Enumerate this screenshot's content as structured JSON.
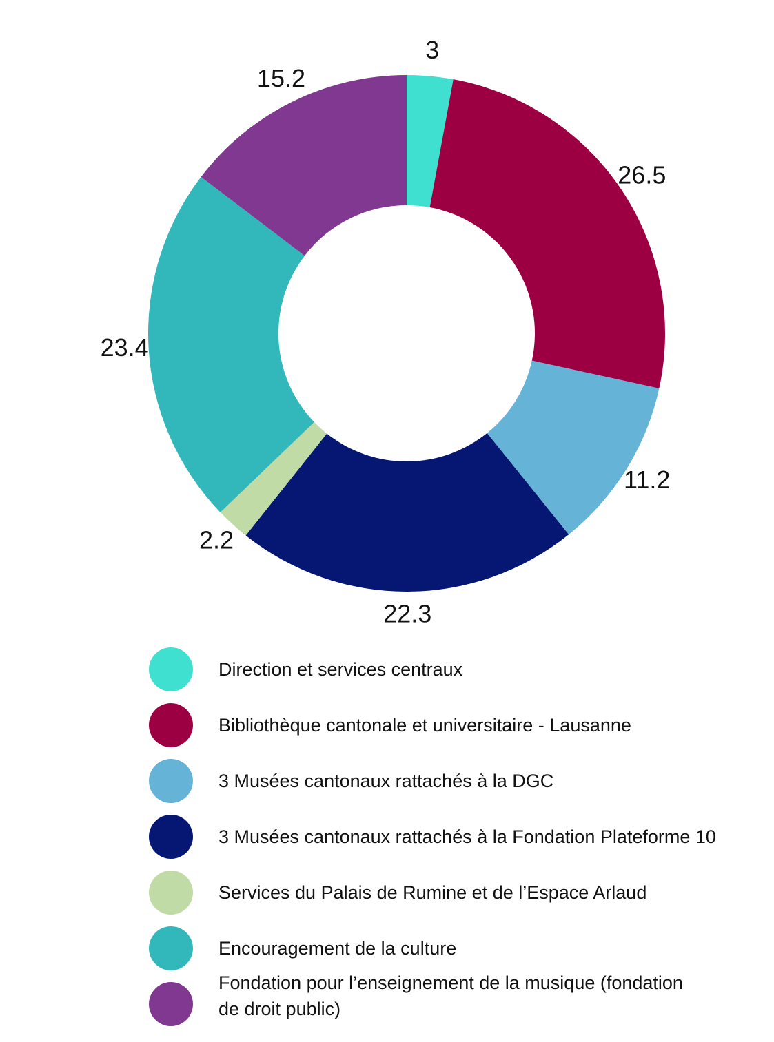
{
  "chart_data": {
    "type": "pie",
    "variant": "donut",
    "title": "",
    "series": [
      {
        "categories": [
          "Direction et services centraux",
          "Bibliothèque cantonale et universitaire - Lausanne",
          "3 Musées cantonaux rattachés à la DGC",
          "3 Musées cantonaux rattachés à la Fondation Plateforme 10",
          "Services du Palais de Rumine et de l’Espace Arlaud",
          "Encouragement de la culture",
          "Fondation pour l’enseignement de la musique (fondation\nde droit public)"
        ],
        "values": [
          3,
          26.5,
          11.2,
          22.3,
          2.2,
          23.4,
          15.2
        ],
        "data_labels": [
          "3",
          "26.5",
          "11.2",
          "22.3",
          "2.2",
          "23.4",
          "15.2"
        ],
        "colors": [
          "#40e0d0",
          "#9c0042",
          "#66b3d8",
          "#061673",
          "#c0dba6",
          "#32b7bb",
          "#803890"
        ]
      }
    ],
    "legend_position": "bottom"
  }
}
